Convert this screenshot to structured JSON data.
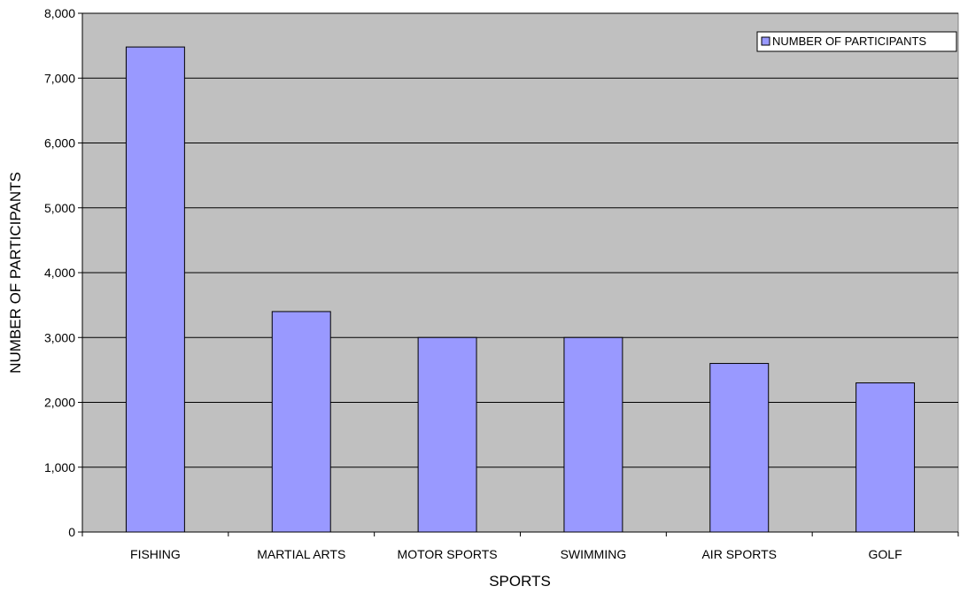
{
  "chart_data": {
    "type": "bar",
    "title": "",
    "xlabel": "SPORTS",
    "ylabel": "NUMBER OF PARTICIPANTS",
    "categories": [
      "FISHING",
      "MARTIAL ARTS",
      "MOTOR SPORTS",
      "SWIMMING",
      "AIR SPORTS",
      "GOLF"
    ],
    "series": [
      {
        "name": "NUMBER OF PARTICIPANTS",
        "values": [
          7480,
          3400,
          3000,
          3000,
          2600,
          2300
        ]
      }
    ],
    "ylim": [
      0,
      8000
    ],
    "yticks": [
      0,
      1000,
      2000,
      3000,
      4000,
      5000,
      6000,
      7000,
      8000
    ],
    "ytick_labels": [
      "0",
      "1,000",
      "2,000",
      "3,000",
      "4,000",
      "5,000",
      "6,000",
      "7,000",
      "8,000"
    ],
    "grid": true,
    "legend_position": "top-right",
    "colors": {
      "plot_background": "#c0c0c0",
      "bar_fill": "#9999ff",
      "bar_stroke": "#000000",
      "gridline": "#000000"
    }
  }
}
